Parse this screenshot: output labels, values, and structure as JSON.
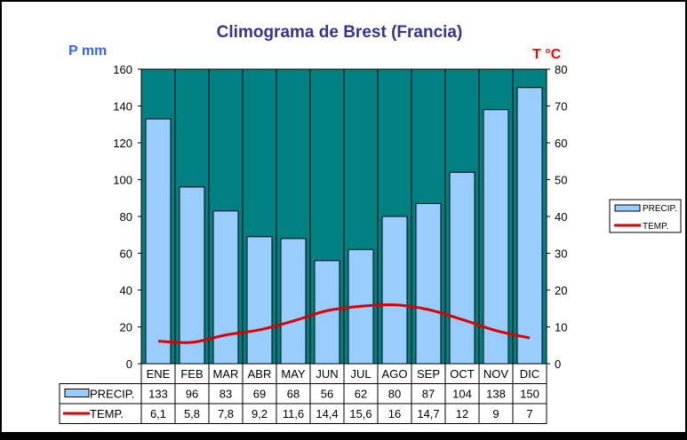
{
  "chart_data": {
    "type": "bar",
    "title": "Climograma de Brest (Francia)",
    "ylabel_left": "P mm",
    "ylabel_right": "T °C",
    "categories": [
      "ENE",
      "FEB",
      "MAR",
      "ABR",
      "MAY",
      "JUN",
      "JUL",
      "AGO",
      "SEP",
      "OCT",
      "NOV",
      "DIC"
    ],
    "ylim_left": [
      0,
      160
    ],
    "ylim_right": [
      0,
      80
    ],
    "yticks_left": [
      0,
      20,
      40,
      60,
      80,
      100,
      120,
      140,
      160
    ],
    "yticks_right": [
      0,
      10,
      20,
      30,
      40,
      50,
      60,
      70,
      80
    ],
    "grid": "vertical",
    "legend_position": "right",
    "series": [
      {
        "name": "PRECIP.",
        "type": "bar",
        "axis": "left",
        "color": "#99CCFF",
        "values": [
          133,
          96,
          83,
          69,
          68,
          56,
          62,
          80,
          87,
          104,
          138,
          150
        ],
        "labels": [
          "133",
          "96",
          "83",
          "69",
          "68",
          "56",
          "62",
          "80",
          "87",
          "104",
          "138",
          "150"
        ]
      },
      {
        "name": "TEMP.",
        "type": "line",
        "axis": "right",
        "color": "#E00000",
        "values": [
          6.1,
          5.8,
          7.8,
          9.2,
          11.6,
          14.4,
          15.6,
          16,
          14.7,
          12,
          9,
          7
        ],
        "labels": [
          "6,1",
          "5,8",
          "7,8",
          "9,2",
          "11,6",
          "14,4",
          "15,6",
          "16",
          "14,7",
          "12",
          "9",
          "7"
        ]
      }
    ],
    "plot_background": "#008080"
  }
}
